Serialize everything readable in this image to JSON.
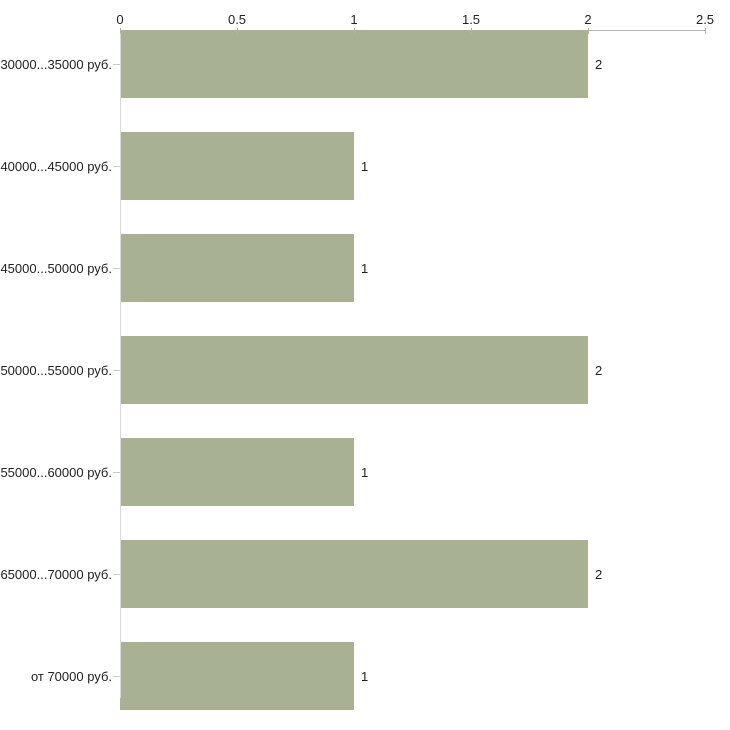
{
  "chart_data": {
    "type": "bar",
    "orientation": "horizontal",
    "categories": [
      "30000...35000 руб.",
      "40000...45000 руб.",
      "45000...50000 руб.",
      "50000...55000 руб.",
      "55000...60000 руб.",
      "65000...70000 руб.",
      "от 70000 руб."
    ],
    "values": [
      2,
      1,
      1,
      2,
      1,
      2,
      1
    ],
    "value_labels": [
      "2",
      "1",
      "1",
      "2",
      "1",
      "2",
      "1"
    ],
    "x_axis": {
      "position": "top",
      "range": [
        0,
        2.5
      ],
      "ticks": [
        0,
        0.5,
        1,
        1.5,
        2,
        2.5
      ],
      "tick_labels": [
        "0",
        "0.5",
        "1",
        "1.5",
        "2",
        "2.5"
      ]
    },
    "grid": false,
    "legend": false,
    "colors": {
      "bar": "#a9b193",
      "x_axis_line": "#b6b6ae",
      "y_axis_line": "#d9d9d9",
      "tick_mark": "#b5b59a",
      "category_tick": "#c9c9c9",
      "text": "#222222",
      "background": "#ffffff"
    }
  }
}
